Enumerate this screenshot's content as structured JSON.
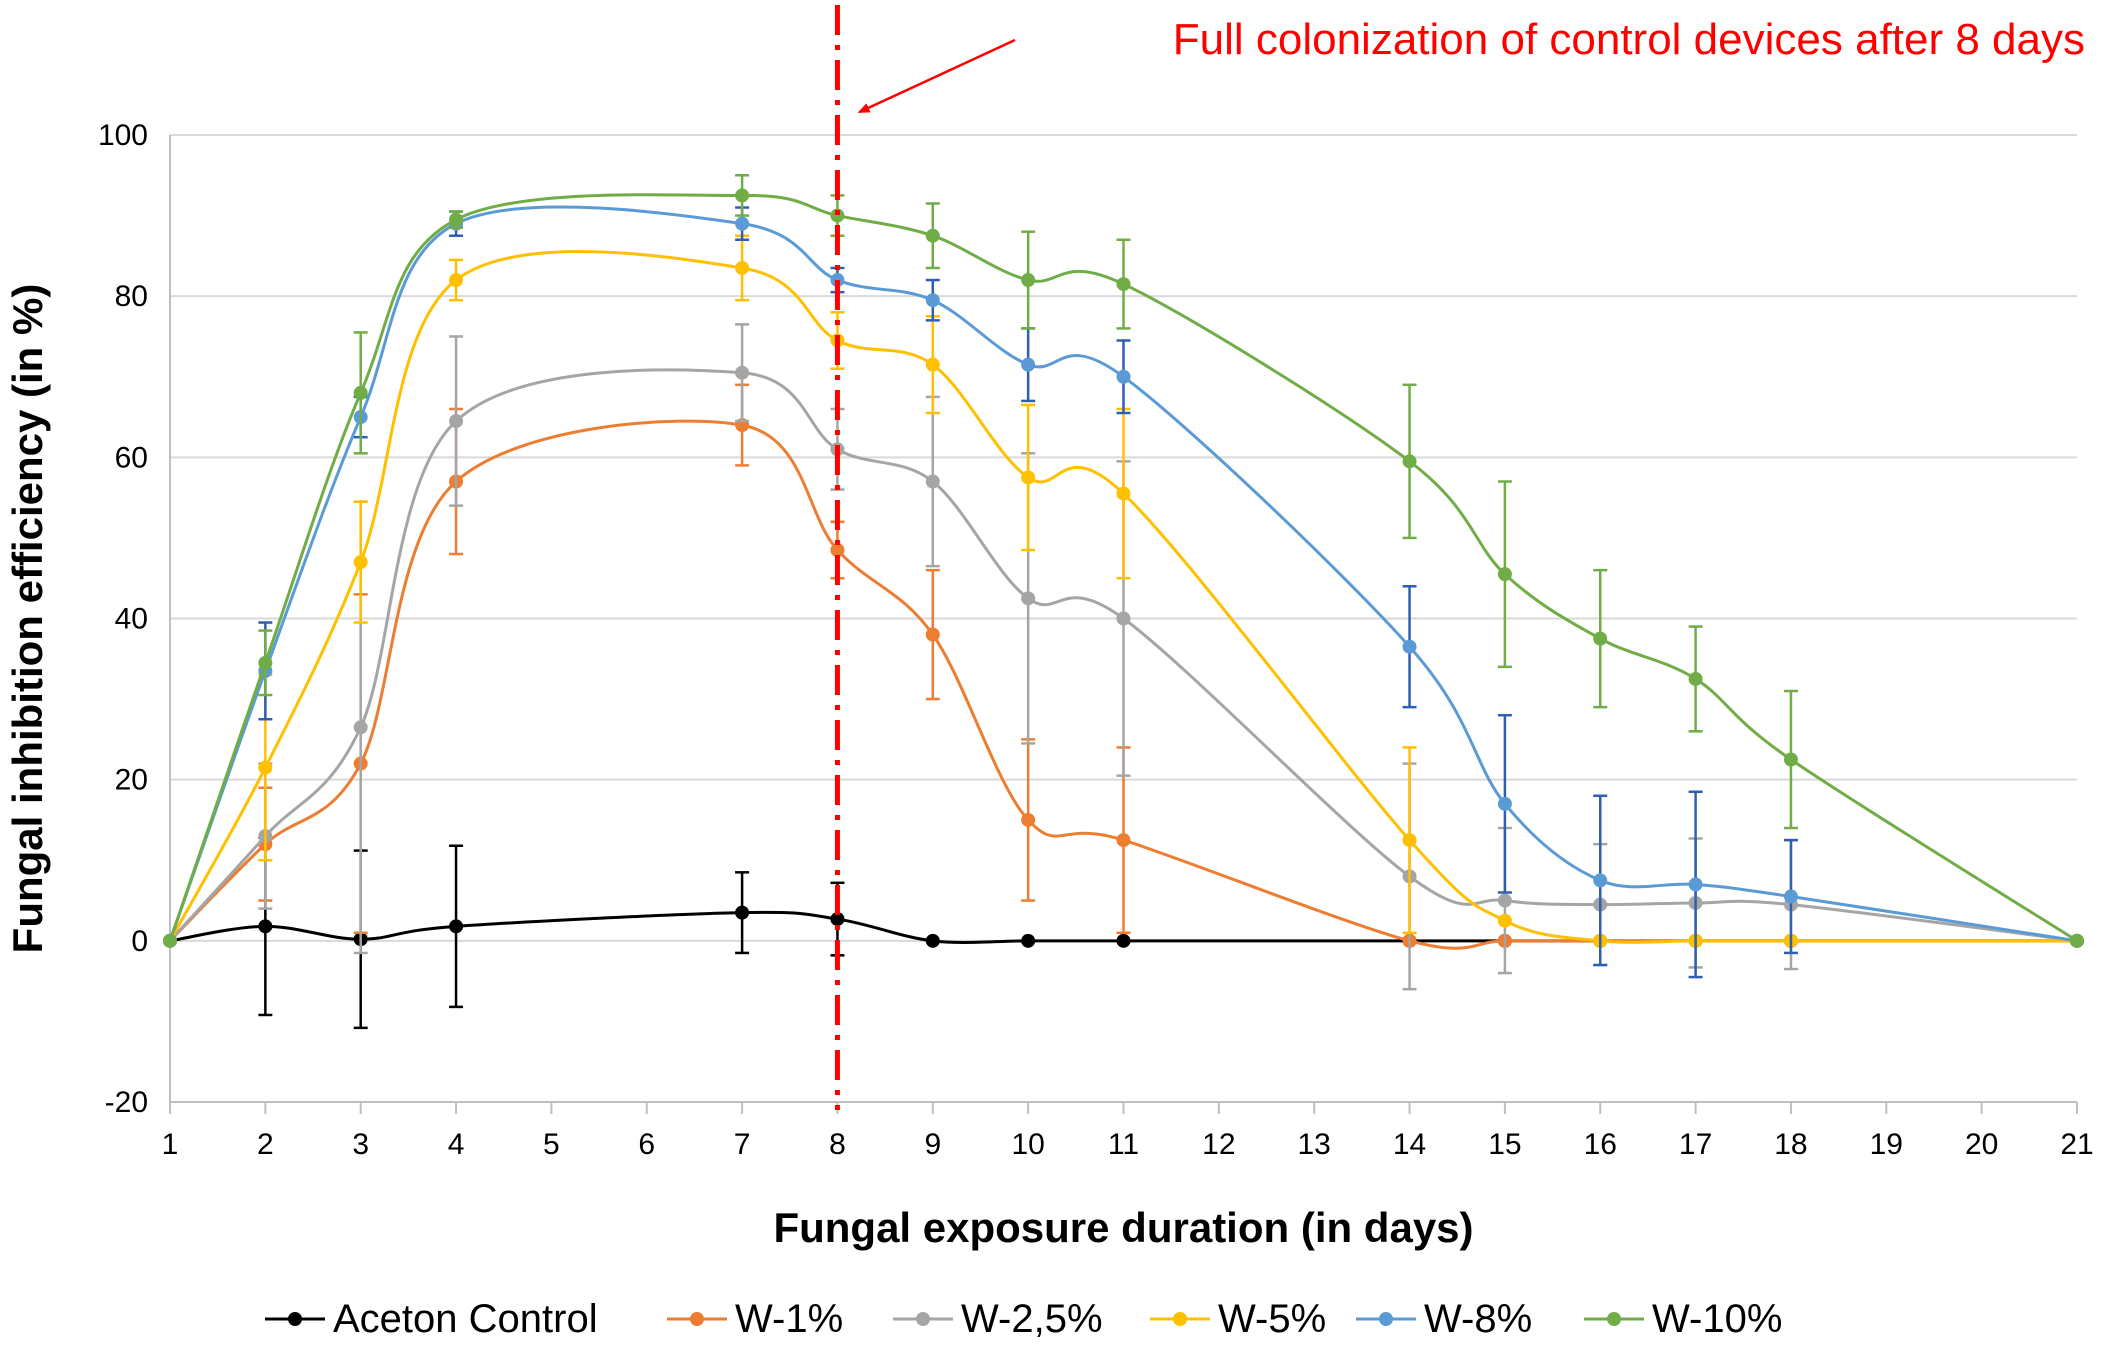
{
  "chart_data": {
    "type": "line",
    "title": "",
    "xlabel": "Fungal exposure duration (in days)",
    "ylabel": "Fungal inhibition efficiency (in %)",
    "ylim": [
      -20,
      100
    ],
    "yticks": [
      -20,
      0,
      20,
      40,
      60,
      80,
      100
    ],
    "xlim": [
      1,
      21
    ],
    "xticks": [
      1,
      2,
      3,
      4,
      5,
      6,
      7,
      8,
      9,
      10,
      11,
      12,
      13,
      14,
      15,
      16,
      17,
      18,
      19,
      20,
      21
    ],
    "grid": "horizontal",
    "legend_position": "bottom",
    "annotation": {
      "text": "Full colonization of control devices after 8 days",
      "x": 8,
      "color": "#ff0000"
    },
    "series": [
      {
        "name": "Aceton Control",
        "color": "#000000",
        "x": [
          1,
          2,
          3,
          4,
          7,
          8,
          9,
          10,
          11,
          14,
          15,
          16,
          17,
          18,
          21
        ],
        "y": [
          0,
          1.8,
          0.2,
          1.8,
          3.5,
          2.7,
          0,
          0,
          0,
          0,
          0,
          0,
          0,
          0,
          0
        ],
        "err": [
          0,
          11,
          11,
          10,
          5,
          4.5,
          0,
          0,
          0,
          0,
          0,
          0,
          0,
          0,
          0
        ]
      },
      {
        "name": "W-1%",
        "color": "#ed7d31",
        "x": [
          1,
          2,
          3,
          4,
          7,
          8,
          9,
          10,
          11,
          14,
          15,
          16,
          17,
          18,
          21
        ],
        "y": [
          0,
          12,
          22,
          57,
          64,
          48.5,
          38,
          15,
          12.5,
          0,
          0,
          0,
          0,
          0,
          0
        ],
        "err": [
          0,
          7,
          21,
          9,
          5,
          3.5,
          8,
          10,
          11.5,
          0,
          0,
          0,
          0,
          0,
          0
        ]
      },
      {
        "name": "W-2,5%",
        "color": "#a5a5a5",
        "x": [
          1,
          2,
          3,
          4,
          7,
          8,
          9,
          10,
          11,
          14,
          15,
          16,
          17,
          18,
          21
        ],
        "y": [
          0,
          13,
          26.5,
          64.5,
          70.5,
          61,
          57,
          42.5,
          40,
          8,
          5,
          4.5,
          4.7,
          4.5,
          0
        ],
        "err": [
          0,
          9,
          28,
          10.5,
          6,
          5,
          10.5,
          18,
          19.5,
          14,
          9,
          7.5,
          8,
          8,
          0
        ]
      },
      {
        "name": "W-5%",
        "color": "#ffc000",
        "x": [
          1,
          2,
          3,
          4,
          7,
          8,
          9,
          10,
          11,
          14,
          15,
          16,
          17,
          18,
          21
        ],
        "y": [
          0,
          21.5,
          47,
          82,
          83.5,
          74.5,
          71.5,
          57.5,
          55.5,
          12.5,
          2.5,
          0,
          0,
          0,
          0
        ],
        "err": [
          0,
          11.5,
          7.5,
          2.5,
          4,
          3.5,
          6,
          9,
          10.5,
          11.5,
          0,
          0,
          0,
          0,
          0
        ]
      },
      {
        "name": "W-8%",
        "color": "#5b9bd5",
        "x": [
          1,
          2,
          3,
          4,
          7,
          8,
          9,
          10,
          11,
          14,
          15,
          16,
          17,
          18,
          21
        ],
        "y": [
          0,
          33.5,
          65,
          89,
          89,
          82,
          79.5,
          71.5,
          70,
          36.5,
          17,
          7.5,
          7,
          5.5,
          0
        ],
        "err": [
          0,
          6,
          2.5,
          1.5,
          2,
          1.5,
          2.5,
          4.5,
          4.5,
          7.5,
          11,
          10.5,
          11.5,
          7,
          0
        ]
      },
      {
        "name": "W-10%",
        "color": "#70ad47",
        "x": [
          1,
          2,
          3,
          4,
          7,
          8,
          9,
          10,
          11,
          14,
          15,
          16,
          17,
          18,
          21
        ],
        "y": [
          0,
          34.5,
          68,
          89.5,
          92.5,
          90,
          87.5,
          82,
          81.5,
          59.5,
          45.5,
          37.5,
          32.5,
          22.5,
          0
        ],
        "err": [
          0,
          4,
          7.5,
          1,
          2.5,
          2.5,
          4,
          6,
          5.5,
          9.5,
          11.5,
          8.5,
          6.5,
          8.5,
          0
        ]
      }
    ]
  }
}
